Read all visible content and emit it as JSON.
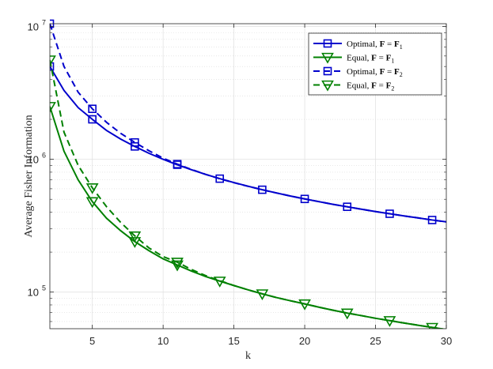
{
  "chart_data": {
    "type": "line",
    "title": "",
    "xlabel": "k",
    "ylabel": "Average Fisher Information",
    "xlim": [
      2,
      30
    ],
    "ylim": [
      53000,
      10500000
    ],
    "yscale": "log",
    "grid": true,
    "minor_grid": true,
    "legend_placement": "top-right",
    "x_ticks": [
      5,
      10,
      15,
      20,
      25,
      30
    ],
    "x_tick_labels": [
      "5",
      "10",
      "15",
      "20",
      "25",
      "30"
    ],
    "y_ticks": [
      100000,
      1000000,
      10000000
    ],
    "y_tick_labels": [
      {
        "base": "10",
        "exp": "5"
      },
      {
        "base": "10",
        "exp": "6"
      },
      {
        "base": "10",
        "exp": "7"
      }
    ],
    "series": [
      {
        "name": "Optimal, F = F1",
        "legend_prefix": "Optimal, ",
        "legend_sub": "1",
        "color": "#0000cc",
        "dash": "solid",
        "marker": "square",
        "x": [
          2,
          3,
          4,
          5,
          6,
          7,
          8,
          9,
          10,
          11,
          12,
          13,
          14,
          15,
          16,
          17,
          18,
          19,
          20,
          21,
          22,
          23,
          24,
          25,
          26,
          27,
          28,
          29,
          30
        ],
        "y": [
          5000000,
          3300000,
          2450000,
          2000000,
          1650000,
          1420000,
          1250000,
          1110000,
          1000000,
          910000,
          835000,
          770000,
          715000,
          668000,
          627000,
          590000,
          558000,
          529000,
          503000,
          480000,
          458000,
          439000,
          421000,
          404000,
          389000,
          375000,
          362000,
          349000,
          338000
        ],
        "marker_x": [
          2,
          5,
          8,
          11,
          14,
          17,
          20,
          23,
          26,
          29
        ]
      },
      {
        "name": "Equal, F = F1",
        "legend_prefix": "Equal, ",
        "legend_sub": "1",
        "color": "#008000",
        "dash": "solid",
        "marker": "triangle-down",
        "x": [
          2,
          3,
          4,
          5,
          6,
          7,
          8,
          9,
          10,
          11,
          12,
          13,
          14,
          15,
          16,
          17,
          18,
          19,
          20,
          21,
          22,
          23,
          24,
          25,
          26,
          27,
          28,
          29,
          30
        ],
        "y": [
          2500000,
          1150000,
          700000,
          480000,
          360000,
          290000,
          240000,
          205000,
          178000,
          160000,
          144000,
          131000,
          121000,
          112000,
          104000,
          97000,
          91000,
          86000,
          81500,
          77000,
          73000,
          69500,
          66500,
          63500,
          61000,
          58500,
          56300,
          54200,
          52300
        ],
        "marker_x": [
          2,
          5,
          8,
          11,
          14,
          17,
          20,
          23,
          26,
          29
        ]
      },
      {
        "name": "Optimal, F = F2",
        "legend_prefix": "Optimal, ",
        "legend_sub": "2",
        "color": "#0000cc",
        "dash": "dashed",
        "marker": "square",
        "x": [
          2,
          3,
          4,
          5,
          6,
          7,
          8,
          9,
          10,
          11,
          12,
          13,
          14,
          15,
          16,
          17,
          18,
          19,
          20,
          21,
          22,
          23,
          24,
          25,
          26,
          27,
          28,
          29,
          30
        ],
        "y": [
          10500000,
          5000000,
          3200000,
          2400000,
          1900000,
          1570000,
          1340000,
          1160000,
          1020000,
          920000,
          838000,
          770000,
          714000,
          667000,
          626000,
          590000,
          558000,
          529000,
          503000,
          480000,
          458000,
          439000,
          421000,
          404000,
          389000,
          375000,
          362000,
          349000,
          338000
        ],
        "marker_x": [
          2,
          5,
          8,
          11
        ]
      },
      {
        "name": "Equal, F = F2",
        "legend_prefix": "Equal, ",
        "legend_sub": "2",
        "color": "#008000",
        "dash": "dashed",
        "marker": "triangle-down",
        "x": [
          2,
          3,
          4,
          5,
          6,
          7,
          8,
          9,
          10,
          11,
          12,
          13,
          14,
          15,
          16,
          17,
          18,
          19,
          20,
          21,
          22,
          23,
          24,
          25,
          26,
          27,
          28,
          29,
          30
        ],
        "y": [
          5600000,
          1600000,
          900000,
          610000,
          440000,
          335000,
          265000,
          215000,
          185000,
          168000,
          148000,
          133000,
          122000,
          112000,
          104000,
          97000,
          91000,
          86000,
          81500,
          77000,
          73000,
          69500,
          66500,
          63500,
          61000,
          58500,
          56300,
          54200,
          52300
        ],
        "marker_x": [
          2,
          5,
          8,
          11
        ]
      }
    ]
  }
}
